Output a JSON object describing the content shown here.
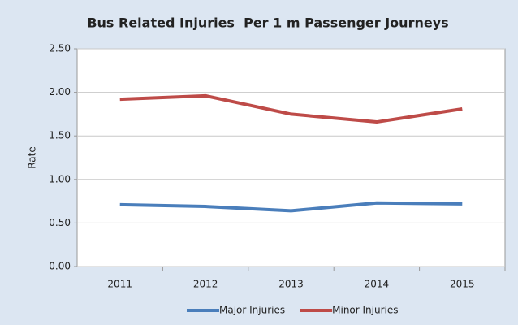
{
  "chart_data": {
    "type": "line",
    "title": "Bus Related Injuries  Per 1 m Passenger Journeys",
    "y_label": "Rate",
    "categories": [
      "2011",
      "2012",
      "2013",
      "2014",
      "2015"
    ],
    "series": [
      {
        "name": "Major Injuries",
        "color": "#4a7ebb",
        "values": [
          0.71,
          0.69,
          0.64,
          0.73,
          0.72
        ]
      },
      {
        "name": "Minor Injuries",
        "color": "#be4b48",
        "values": [
          1.92,
          1.96,
          1.75,
          1.66,
          1.81
        ]
      }
    ],
    "ylim": [
      0,
      2.5
    ],
    "yticks": [
      {
        "value": 0,
        "label": "0.00"
      },
      {
        "value": 0.5,
        "label": "0.50"
      },
      {
        "value": 1,
        "label": "1.00"
      },
      {
        "value": 1.5,
        "label": "1.50"
      },
      {
        "value": 2,
        "label": "2.00"
      },
      {
        "value": 2.5,
        "label": "2.50"
      }
    ],
    "grid": true,
    "legend": "bottom"
  }
}
